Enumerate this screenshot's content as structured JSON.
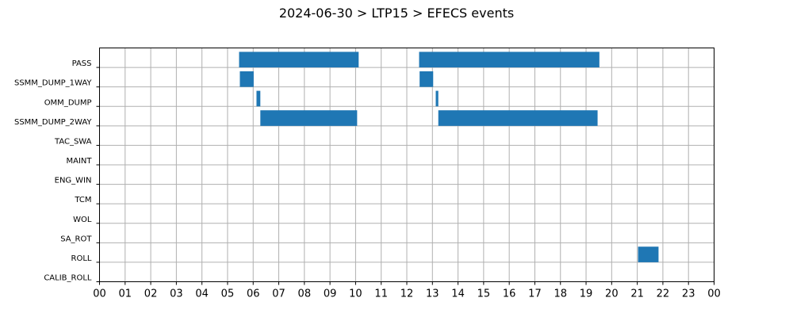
{
  "chart_data": {
    "type": "bar",
    "orientation": "horizontal-timeline",
    "title": "2024-06-30 > LTP15 > EFECS events",
    "xlabel": "",
    "ylabel": "",
    "xlim_hours": [
      0,
      24
    ],
    "x_tick_labels": [
      "00",
      "01",
      "02",
      "03",
      "04",
      "05",
      "06",
      "07",
      "08",
      "09",
      "10",
      "11",
      "12",
      "13",
      "14",
      "15",
      "16",
      "17",
      "18",
      "19",
      "20",
      "21",
      "22",
      "23",
      "00"
    ],
    "categories": [
      "PASS",
      "SSMM_DUMP_1WAY",
      "OMM_DUMP",
      "SSMM_DUMP_2WAY",
      "TAC_SWA",
      "MAINT",
      "ENG_WIN",
      "TCM",
      "WOL",
      "SA_ROT",
      "ROLL",
      "CALIB_ROLL"
    ],
    "bar_color": "#1f77b4",
    "grid": true,
    "events": [
      {
        "category": "PASS",
        "start": 5.45,
        "end": 10.12
      },
      {
        "category": "PASS",
        "start": 12.48,
        "end": 19.52
      },
      {
        "category": "SSMM_DUMP_1WAY",
        "start": 5.48,
        "end": 6.02
      },
      {
        "category": "SSMM_DUMP_1WAY",
        "start": 12.5,
        "end": 13.03
      },
      {
        "category": "OMM_DUMP",
        "start": 6.13,
        "end": 6.28
      },
      {
        "category": "OMM_DUMP",
        "start": 13.13,
        "end": 13.23
      },
      {
        "category": "SSMM_DUMP_2WAY",
        "start": 6.28,
        "end": 10.06
      },
      {
        "category": "SSMM_DUMP_2WAY",
        "start": 13.23,
        "end": 19.45
      },
      {
        "category": "ROLL",
        "start": 21.03,
        "end": 21.83
      }
    ]
  }
}
